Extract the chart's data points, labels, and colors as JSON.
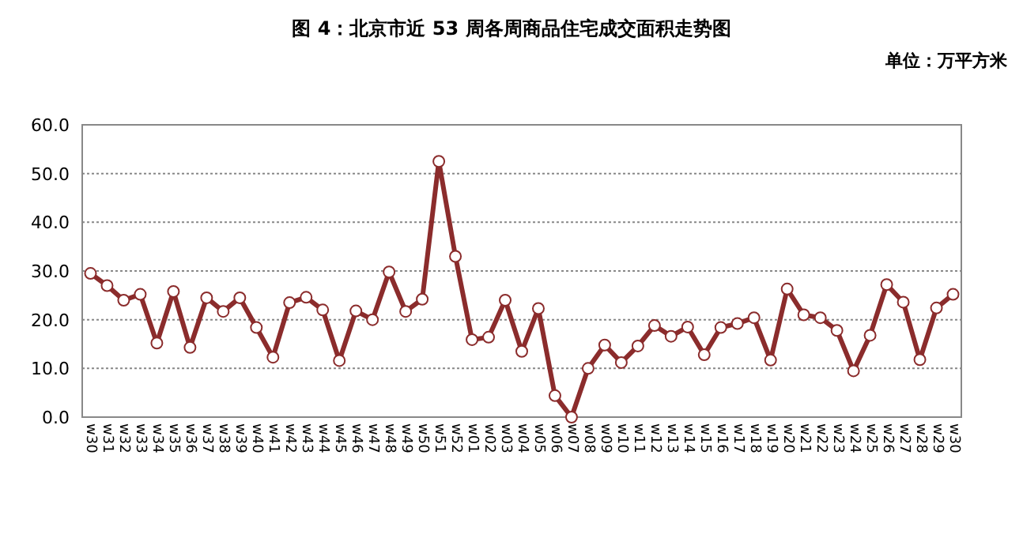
{
  "chart_data": {
    "type": "line",
    "title": "图 4：北京市近 53 周各周商品住宅成交面积走势图",
    "annotations": [
      "单位：万平方米"
    ],
    "categories": [
      "w30",
      "w31",
      "w32",
      "w33",
      "w34",
      "w35",
      "w36",
      "w37",
      "w38",
      "w39",
      "w40",
      "w41",
      "w42",
      "w43",
      "w44",
      "w45",
      "w46",
      "w47",
      "w48",
      "w49",
      "w50",
      "w51",
      "w52",
      "w01",
      "w02",
      "w03",
      "w04",
      "w05",
      "w06",
      "w07",
      "w08",
      "w09",
      "w10",
      "w11",
      "w12",
      "w13",
      "w14",
      "w15",
      "w16",
      "w17",
      "w18",
      "w19",
      "w20",
      "w21",
      "w22",
      "w23",
      "w24",
      "w25",
      "w26",
      "w27",
      "w28",
      "w29",
      "w30"
    ],
    "series": [
      {
        "color": "#8b2c2c",
        "values": [
          29.5,
          27,
          24,
          25.2,
          15.2,
          25.8,
          14.3,
          24.5,
          21.7,
          24.5,
          18.4,
          12.3,
          23.5,
          24.6,
          22,
          11.6,
          21.8,
          20,
          29.8,
          21.7,
          24.2,
          52.5,
          33,
          15.9,
          16.4,
          24,
          13.5,
          22.3,
          4.4,
          0,
          10,
          14.8,
          11.2,
          14.6,
          18.8,
          16.6,
          18.5,
          12.8,
          18.4,
          19.2,
          20.4,
          11.7,
          26.3,
          21,
          20.4,
          17.8,
          9.5,
          16.8,
          27.2,
          23.6,
          11.8,
          22.4,
          25.2
        ]
      }
    ],
    "ylim": [
      0,
      60
    ],
    "yticks": [
      {
        "value": 0,
        "label": "0.0"
      },
      {
        "value": 10,
        "label": "10.0"
      },
      {
        "value": 20,
        "label": "20.0"
      },
      {
        "value": 30,
        "label": "30.0"
      },
      {
        "value": 40,
        "label": "40.0"
      },
      {
        "value": 50,
        "label": "50.0"
      },
      {
        "value": 60,
        "label": "60.0"
      }
    ],
    "grid": "y",
    "marker": "circle",
    "line_style": "solid"
  }
}
